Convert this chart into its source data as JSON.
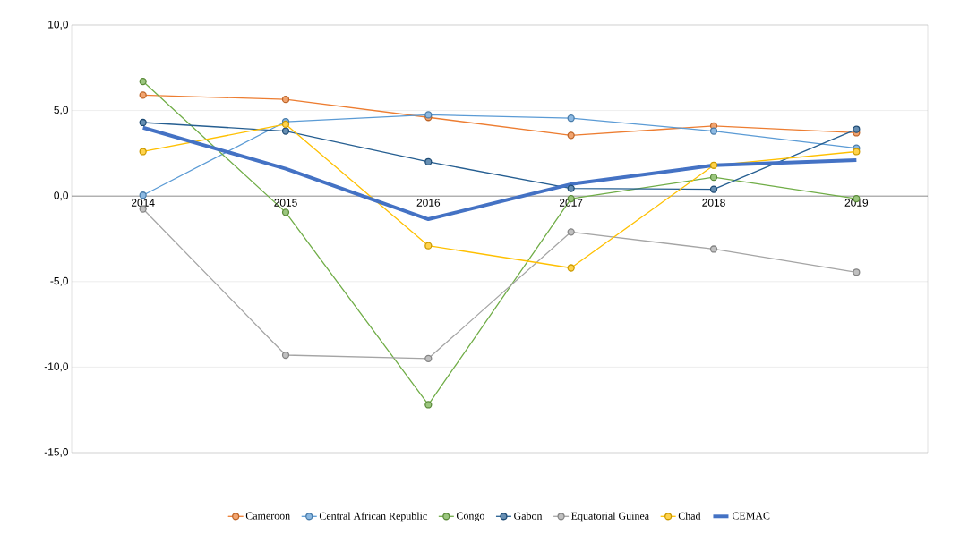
{
  "chart_data": {
    "type": "line",
    "categories": [
      "2014",
      "2015",
      "2016",
      "2017",
      "2018",
      "2019"
    ],
    "series": [
      {
        "name": "Cameroon",
        "color": "#ed7d31",
        "values": [
          5.9,
          5.65,
          4.6,
          3.55,
          4.1,
          3.7
        ]
      },
      {
        "name": "Central African Republic",
        "color": "#5b9bd5",
        "values": [
          0.05,
          4.35,
          4.75,
          4.55,
          3.8,
          2.8
        ]
      },
      {
        "name": "Congo",
        "color": "#70ad47",
        "values": [
          6.7,
          -0.95,
          -12.2,
          -0.15,
          1.1,
          -0.15
        ]
      },
      {
        "name": "Gabon",
        "color": "#255e91",
        "values": [
          4.3,
          3.8,
          2.0,
          0.45,
          0.4,
          3.9
        ]
      },
      {
        "name": "Equatorial Guinea",
        "color": "#a5a5a5",
        "values": [
          -0.75,
          -9.3,
          -9.5,
          -2.1,
          -3.1,
          -4.45
        ]
      },
      {
        "name": "Chad",
        "color": "#ffc000",
        "values": [
          2.6,
          4.2,
          -2.9,
          -4.2,
          1.8,
          2.6
        ]
      },
      {
        "name": "CEMAC",
        "color": "#4472c4",
        "marker": "none",
        "values": [
          4.0,
          1.6,
          -1.35,
          0.7,
          1.8,
          2.1
        ]
      }
    ],
    "ylim": [
      -15,
      10
    ],
    "yticks": [
      {
        "value": -15,
        "label": "-15,0"
      },
      {
        "value": -10,
        "label": "-10,0"
      },
      {
        "value": -5,
        "label": "-5,0"
      },
      {
        "value": 0,
        "label": "0,0"
      },
      {
        "value": 5,
        "label": "5,0"
      },
      {
        "value": 10,
        "label": "10,0"
      }
    ],
    "grid": "y",
    "legend": "bottom",
    "marker": "circle"
  }
}
